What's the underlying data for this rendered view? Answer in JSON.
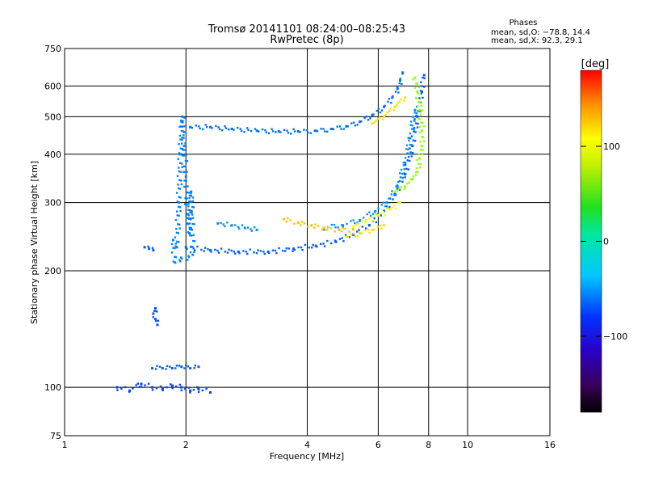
{
  "chart_data": {
    "type": "scatter",
    "title": "Tromsø 20141101 08:24:00–08:25:43",
    "subtitle": "RwPretec (8p)",
    "xlabel": "Frequency [MHz]",
    "ylabel": "Stationary phase Virtual Height [km]",
    "x_scale": "log",
    "y_scale": "log",
    "xlim": [
      1,
      16
    ],
    "ylim": [
      75,
      750
    ],
    "x_ticks": [
      1,
      2,
      4,
      6,
      8,
      10,
      16
    ],
    "y_ticks": [
      75,
      100,
      200,
      300,
      400,
      500,
      600,
      750
    ],
    "grid": true,
    "phases": {
      "heading": "Phases",
      "line_o": "mean, sd,O: −78.8, 14.4",
      "line_x": "mean, sd,X:  92.3, 29.1"
    },
    "colorbar": {
      "unit_label": "[deg]",
      "ticks": [
        100,
        0,
        -100
      ],
      "range": [
        -180,
        180
      ]
    },
    "traces": [
      {
        "name": "",
        "phase": -105,
        "points": [
          [
            2.05,
            470
          ],
          [
            2.3,
            470
          ],
          [
            2.6,
            465
          ],
          [
            3.0,
            460
          ],
          [
            3.4,
            458
          ],
          [
            3.8,
            458
          ],
          [
            4.2,
            460
          ],
          [
            4.6,
            465
          ],
          [
            5.0,
            472
          ],
          [
            5.4,
            485
          ],
          [
            5.8,
            505
          ],
          [
            6.2,
            530
          ],
          [
            6.5,
            560
          ],
          [
            6.7,
            590
          ],
          [
            6.8,
            620
          ],
          [
            6.9,
            650
          ]
        ]
      },
      {
        "name": "",
        "phase": -110,
        "points": [
          [
            2.0,
            230
          ],
          [
            2.3,
            226
          ],
          [
            2.7,
            224
          ],
          [
            3.2,
            224
          ],
          [
            3.7,
            228
          ],
          [
            4.2,
            232
          ],
          [
            4.7,
            238
          ],
          [
            5.2,
            248
          ],
          [
            5.7,
            262
          ],
          [
            6.2,
            285
          ],
          [
            6.6,
            315
          ],
          [
            7.0,
            355
          ],
          [
            7.3,
            420
          ],
          [
            7.5,
            500
          ],
          [
            7.7,
            580
          ],
          [
            7.8,
            640
          ]
        ]
      },
      {
        "name": "",
        "phase": -95,
        "points": [
          [
            4.4,
            258
          ],
          [
            4.9,
            262
          ],
          [
            5.4,
            270
          ],
          [
            5.9,
            285
          ],
          [
            6.3,
            300
          ],
          [
            6.7,
            330
          ],
          [
            7.0,
            380
          ],
          [
            7.2,
            440
          ],
          [
            7.4,
            520
          ]
        ]
      },
      {
        "name": "",
        "phase": 65,
        "points": [
          [
            6.6,
            320
          ],
          [
            7.0,
            330
          ],
          [
            7.3,
            345
          ],
          [
            7.5,
            360
          ],
          [
            7.6,
            390
          ],
          [
            7.7,
            420
          ],
          [
            7.7,
            460
          ],
          [
            7.6,
            520
          ],
          [
            7.5,
            580
          ],
          [
            7.4,
            630
          ]
        ]
      },
      {
        "name": "",
        "phase": 120,
        "points": [
          [
            3.5,
            272
          ],
          [
            3.8,
            266
          ],
          [
            4.1,
            262
          ],
          [
            4.4,
            258
          ],
          [
            4.8,
            255
          ],
          [
            5.2,
            256
          ]
        ]
      },
      {
        "name": "",
        "phase": 95,
        "points": [
          [
            5.2,
            260
          ],
          [
            5.6,
            270
          ],
          [
            6.0,
            278
          ],
          [
            6.4,
            288
          ],
          [
            6.8,
            300
          ]
        ]
      },
      {
        "name": "",
        "phase": 110,
        "points": [
          [
            5.8,
            480
          ],
          [
            6.2,
            500
          ],
          [
            6.6,
            530
          ],
          [
            7.0,
            560
          ]
        ]
      },
      {
        "name": "",
        "phase": 110,
        "points": [
          [
            5.0,
            245
          ],
          [
            5.4,
            250
          ],
          [
            5.8,
            255
          ],
          [
            6.2,
            262
          ]
        ]
      },
      {
        "name": "",
        "phase": -100,
        "points": [
          [
            1.9,
            230
          ],
          [
            1.92,
            300
          ],
          [
            1.94,
            400
          ],
          [
            1.96,
            500
          ],
          [
            1.98,
            420
          ],
          [
            2.0,
            350
          ],
          [
            2.02,
            280
          ],
          [
            2.04,
            250
          ],
          [
            2.06,
            320
          ],
          [
            2.08,
            220
          ],
          [
            1.88,
            210
          ],
          [
            1.86,
            240
          ]
        ]
      },
      {
        "name": "",
        "phase": -120,
        "points": [
          [
            1.35,
            100
          ],
          [
            1.45,
            98
          ],
          [
            1.55,
            102
          ],
          [
            1.65,
            100
          ],
          [
            1.75,
            99
          ],
          [
            1.85,
            101
          ],
          [
            1.95,
            100
          ],
          [
            2.05,
            98
          ],
          [
            2.15,
            99
          ],
          [
            2.3,
            97
          ]
        ]
      },
      {
        "name": "",
        "phase": -110,
        "points": [
          [
            1.65,
            112
          ],
          [
            1.75,
            112
          ],
          [
            1.85,
            112
          ],
          [
            1.95,
            113
          ],
          [
            2.05,
            112
          ],
          [
            2.15,
            113
          ]
        ]
      },
      {
        "name": "",
        "phase": -110,
        "points": [
          [
            1.58,
            230
          ],
          [
            1.62,
            228
          ],
          [
            1.66,
            226
          ]
        ]
      },
      {
        "name": "",
        "phase": -95,
        "points": [
          [
            2.4,
            265
          ],
          [
            2.6,
            262
          ],
          [
            2.8,
            258
          ],
          [
            3.0,
            255
          ]
        ]
      },
      {
        "name": "",
        "phase": -115,
        "points": [
          [
            1.66,
            155
          ],
          [
            1.68,
            160
          ],
          [
            1.68,
            150
          ],
          [
            1.7,
            145
          ]
        ]
      }
    ]
  }
}
